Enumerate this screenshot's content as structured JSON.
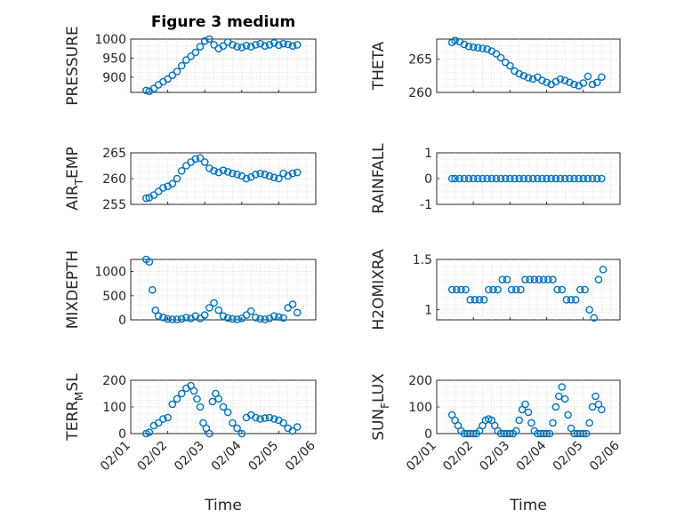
{
  "figure": {
    "title": "Figure 3 medium",
    "x_axis_label": "Time",
    "x_tick_labels": [
      "02/01",
      "02/02",
      "02/03",
      "02/04",
      "02/05",
      "02/06"
    ],
    "marker_color": "#0072BD"
  },
  "chart_data": [
    {
      "type": "scatter",
      "name": "PRESSURE",
      "ylabel": "PRESSURE",
      "ylim": [
        860,
        1000
      ],
      "yticks": [
        900,
        950,
        1000
      ],
      "grid": true,
      "x": [
        "02/01 10:00",
        "02/01 12:00",
        "02/01 15:00",
        "02/01 18:00",
        "02/01 21:00",
        "02/02 00:00",
        "02/02 03:00",
        "02/02 06:00",
        "02/02 09:00",
        "02/02 12:00",
        "02/02 15:00",
        "02/02 18:00",
        "02/02 21:00",
        "02/03 00:00",
        "02/03 03:00",
        "02/03 06:00",
        "02/03 09:00",
        "02/03 12:00",
        "02/03 15:00",
        "02/03 18:00",
        "02/03 21:00",
        "02/04 00:00",
        "02/04 03:00",
        "02/04 06:00",
        "02/04 09:00",
        "02/04 12:00",
        "02/04 15:00",
        "02/04 18:00",
        "02/04 21:00",
        "02/05 00:00",
        "02/05 03:00",
        "02/05 06:00",
        "02/05 09:00",
        "02/05 12:00"
      ],
      "y": [
        865,
        863,
        870,
        880,
        888,
        895,
        905,
        915,
        930,
        945,
        955,
        965,
        980,
        995,
        1000,
        985,
        975,
        982,
        992,
        985,
        980,
        978,
        983,
        980,
        985,
        988,
        982,
        985,
        990,
        984,
        988,
        986,
        982,
        985
      ]
    },
    {
      "type": "scatter",
      "name": "THETA",
      "ylabel": "THETA",
      "ylim": [
        260,
        268
      ],
      "yticks": [
        260,
        265
      ],
      "grid": true,
      "x": [
        "02/01 10:00",
        "02/01 12:00",
        "02/01 15:00",
        "02/01 18:00",
        "02/01 21:00",
        "02/02 00:00",
        "02/02 03:00",
        "02/02 06:00",
        "02/02 09:00",
        "02/02 12:00",
        "02/02 15:00",
        "02/02 18:00",
        "02/02 21:00",
        "02/03 00:00",
        "02/03 03:00",
        "02/03 06:00",
        "02/03 09:00",
        "02/03 12:00",
        "02/03 15:00",
        "02/03 18:00",
        "02/03 21:00",
        "02/04 00:00",
        "02/04 03:00",
        "02/04 06:00",
        "02/04 09:00",
        "02/04 12:00",
        "02/04 15:00",
        "02/04 18:00",
        "02/04 21:00",
        "02/05 00:00",
        "02/05 03:00",
        "02/05 06:00",
        "02/05 09:00",
        "02/05 12:00"
      ],
      "y": [
        267.5,
        267.8,
        267.6,
        267.2,
        266.9,
        266.8,
        266.7,
        266.6,
        266.5,
        266.2,
        265.8,
        265.2,
        264.5,
        264.0,
        263.2,
        262.8,
        262.5,
        262.2,
        262.0,
        262.3,
        261.8,
        261.5,
        261.2,
        261.6,
        262.0,
        261.8,
        261.5,
        261.2,
        261.0,
        261.4,
        262.4,
        261.2,
        261.5,
        262.3
      ]
    },
    {
      "type": "scatter",
      "name": "AIR_TEMP",
      "ylabel_main": "AIR",
      "ylabel_sub": "T",
      "ylabel_rest": "EMP",
      "ylim": [
        255,
        265
      ],
      "yticks": [
        255,
        260,
        265
      ],
      "grid": true,
      "x": [
        "02/01 10:00",
        "02/01 12:00",
        "02/01 15:00",
        "02/01 18:00",
        "02/01 21:00",
        "02/02 00:00",
        "02/02 03:00",
        "02/02 06:00",
        "02/02 09:00",
        "02/02 12:00",
        "02/02 15:00",
        "02/02 18:00",
        "02/02 21:00",
        "02/03 00:00",
        "02/03 03:00",
        "02/03 06:00",
        "02/03 09:00",
        "02/03 12:00",
        "02/03 15:00",
        "02/03 18:00",
        "02/03 21:00",
        "02/04 00:00",
        "02/04 03:00",
        "02/04 06:00",
        "02/04 09:00",
        "02/04 12:00",
        "02/04 15:00",
        "02/04 18:00",
        "02/04 21:00",
        "02/05 00:00",
        "02/05 03:00",
        "02/05 06:00",
        "02/05 09:00",
        "02/05 12:00"
      ],
      "y": [
        256.2,
        256.3,
        256.8,
        257.5,
        258.2,
        258.5,
        259.0,
        260.0,
        261.5,
        262.5,
        263.2,
        263.8,
        264.0,
        263.2,
        262.0,
        261.5,
        261.2,
        261.6,
        261.3,
        261.0,
        260.8,
        260.5,
        260.0,
        260.3,
        260.8,
        261.0,
        260.8,
        260.5,
        260.2,
        260.0,
        261.0,
        260.5,
        261.0,
        261.2
      ]
    },
    {
      "type": "scatter",
      "name": "RAINFALL",
      "ylabel": "RAINFALL",
      "ylim": [
        -1,
        1
      ],
      "yticks": [
        -1,
        0,
        1
      ],
      "grid": true,
      "x": [
        "02/01 10:00",
        "02/01 12:00",
        "02/01 15:00",
        "02/01 18:00",
        "02/01 21:00",
        "02/02 00:00",
        "02/02 03:00",
        "02/02 06:00",
        "02/02 09:00",
        "02/02 12:00",
        "02/02 15:00",
        "02/02 18:00",
        "02/02 21:00",
        "02/03 00:00",
        "02/03 03:00",
        "02/03 06:00",
        "02/03 09:00",
        "02/03 12:00",
        "02/03 15:00",
        "02/03 18:00",
        "02/03 21:00",
        "02/04 00:00",
        "02/04 03:00",
        "02/04 06:00",
        "02/04 09:00",
        "02/04 12:00",
        "02/04 15:00",
        "02/04 18:00",
        "02/04 21:00",
        "02/05 00:00",
        "02/05 03:00",
        "02/05 06:00",
        "02/05 09:00",
        "02/05 12:00"
      ],
      "y": [
        0,
        0,
        0,
        0,
        0,
        0,
        0,
        0,
        0,
        0,
        0,
        0,
        0,
        0,
        0,
        0,
        0,
        0,
        0,
        0,
        0,
        0,
        0,
        0,
        0,
        0,
        0,
        0,
        0,
        0,
        0,
        0,
        0,
        0
      ]
    },
    {
      "type": "scatter",
      "name": "MIXDEPTH",
      "ylabel": "MIXDEPTH",
      "ylim": [
        0,
        1250
      ],
      "yticks": [
        0,
        500,
        1000
      ],
      "grid": true,
      "x": [
        "02/01 10:00",
        "02/01 12:00",
        "02/01 14:00",
        "02/01 16:00",
        "02/01 18:00",
        "02/01 21:00",
        "02/02 00:00",
        "02/02 03:00",
        "02/02 06:00",
        "02/02 09:00",
        "02/02 12:00",
        "02/02 15:00",
        "02/02 18:00",
        "02/02 21:00",
        "02/03 00:00",
        "02/03 03:00",
        "02/03 06:00",
        "02/03 09:00",
        "02/03 12:00",
        "02/03 15:00",
        "02/03 18:00",
        "02/03 21:00",
        "02/04 00:00",
        "02/04 03:00",
        "02/04 06:00",
        "02/04 09:00",
        "02/04 12:00",
        "02/04 15:00",
        "02/04 18:00",
        "02/04 21:00",
        "02/05 00:00",
        "02/05 03:00",
        "02/05 06:00",
        "02/05 09:00",
        "02/05 12:00"
      ],
      "y": [
        1250,
        1200,
        620,
        200,
        80,
        50,
        20,
        10,
        10,
        20,
        50,
        30,
        80,
        30,
        100,
        250,
        350,
        200,
        80,
        40,
        20,
        10,
        30,
        100,
        180,
        50,
        20,
        10,
        30,
        80,
        60,
        40,
        250,
        320,
        150
      ]
    },
    {
      "type": "scatter",
      "name": "H2OMIXRA",
      "ylabel": "H2OMIXRA",
      "ylim": [
        0.9,
        1.5
      ],
      "yticks": [
        1,
        1.5
      ],
      "grid": true,
      "x": [
        "02/01 10:00",
        "02/01 13:00",
        "02/01 16:00",
        "02/01 19:00",
        "02/01 22:00",
        "02/02 01:00",
        "02/02 04:00",
        "02/02 07:00",
        "02/02 10:00",
        "02/02 13:00",
        "02/02 16:00",
        "02/02 19:00",
        "02/02 22:00",
        "02/03 01:00",
        "02/03 04:00",
        "02/03 07:00",
        "02/03 10:00",
        "02/03 13:00",
        "02/03 16:00",
        "02/03 19:00",
        "02/03 22:00",
        "02/04 01:00",
        "02/04 04:00",
        "02/04 07:00",
        "02/04 10:00",
        "02/04 13:00",
        "02/04 16:00",
        "02/04 19:00",
        "02/04 22:00",
        "02/05 01:00",
        "02/05 04:00",
        "02/05 07:00",
        "02/05 10:00",
        "02/05 13:00"
      ],
      "y": [
        1.2,
        1.2,
        1.2,
        1.2,
        1.1,
        1.1,
        1.1,
        1.1,
        1.2,
        1.2,
        1.2,
        1.3,
        1.3,
        1.2,
        1.2,
        1.2,
        1.3,
        1.3,
        1.3,
        1.3,
        1.3,
        1.3,
        1.3,
        1.2,
        1.2,
        1.1,
        1.1,
        1.1,
        1.2,
        1.2,
        1.0,
        0.92,
        1.3,
        1.4
      ]
    },
    {
      "type": "scatter",
      "name": "TERR_MSL",
      "ylabel_main": "TERR",
      "ylabel_sub": "M",
      "ylabel_rest": "SL",
      "ylim": [
        0,
        200
      ],
      "yticks": [
        0,
        100,
        200
      ],
      "grid": true,
      "x": [
        "02/01 10:00",
        "02/01 12:00",
        "02/01 15:00",
        "02/01 18:00",
        "02/01 21:00",
        "02/02 00:00",
        "02/02 03:00",
        "02/02 06:00",
        "02/02 09:00",
        "02/02 12:00",
        "02/02 15:00",
        "02/02 17:00",
        "02/02 19:00",
        "02/02 21:00",
        "02/02 23:00",
        "02/03 01:00",
        "02/03 03:00",
        "02/03 05:00",
        "02/03 07:00",
        "02/03 09:00",
        "02/03 12:00",
        "02/03 15:00",
        "02/03 18:00",
        "02/03 21:00",
        "02/04 00:00",
        "02/04 03:00",
        "02/04 06:00",
        "02/04 09:00",
        "02/04 12:00",
        "02/04 15:00",
        "02/04 18:00",
        "02/04 21:00",
        "02/05 00:00",
        "02/05 03:00",
        "02/05 06:00",
        "02/05 09:00",
        "02/05 12:00"
      ],
      "y": [
        0,
        5,
        30,
        40,
        55,
        60,
        110,
        130,
        150,
        170,
        180,
        160,
        130,
        100,
        40,
        20,
        0,
        120,
        150,
        130,
        100,
        80,
        40,
        20,
        0,
        60,
        70,
        60,
        55,
        58,
        60,
        55,
        50,
        40,
        20,
        10,
        25
      ]
    },
    {
      "type": "scatter",
      "name": "SUN_FLUX",
      "ylabel_main": "SUN",
      "ylabel_sub": "F",
      "ylabel_rest": "LUX",
      "ylim": [
        0,
        200
      ],
      "yticks": [
        0,
        100,
        200
      ],
      "grid": true,
      "x": [
        "02/01 10:00",
        "02/01 12:00",
        "02/01 14:00",
        "02/01 16:00",
        "02/01 18:00",
        "02/01 20:00",
        "02/01 22:00",
        "02/02 00:00",
        "02/02 02:00",
        "02/02 04:00",
        "02/02 06:00",
        "02/02 08:00",
        "02/02 10:00",
        "02/02 12:00",
        "02/02 14:00",
        "02/02 16:00",
        "02/02 18:00",
        "02/02 20:00",
        "02/02 22:00",
        "02/03 00:00",
        "02/03 02:00",
        "02/03 04:00",
        "02/03 06:00",
        "02/03 08:00",
        "02/03 10:00",
        "02/03 12:00",
        "02/03 14:00",
        "02/03 16:00",
        "02/03 18:00",
        "02/03 20:00",
        "02/03 22:00",
        "02/04 00:00",
        "02/04 02:00",
        "02/04 04:00",
        "02/04 06:00",
        "02/04 08:00",
        "02/04 10:00",
        "02/04 12:00",
        "02/04 14:00",
        "02/04 16:00",
        "02/04 18:00",
        "02/04 20:00",
        "02/04 22:00",
        "02/05 00:00",
        "02/05 02:00",
        "02/05 04:00",
        "02/05 06:00",
        "02/05 08:00",
        "02/05 10:00",
        "02/05 12:00"
      ],
      "y": [
        70,
        50,
        30,
        10,
        0,
        0,
        0,
        0,
        0,
        10,
        30,
        50,
        55,
        50,
        30,
        10,
        0,
        0,
        0,
        0,
        0,
        10,
        50,
        90,
        110,
        80,
        40,
        10,
        0,
        0,
        0,
        0,
        0,
        40,
        100,
        140,
        175,
        130,
        70,
        20,
        0,
        0,
        0,
        0,
        0,
        40,
        100,
        140,
        110,
        90
      ]
    }
  ]
}
